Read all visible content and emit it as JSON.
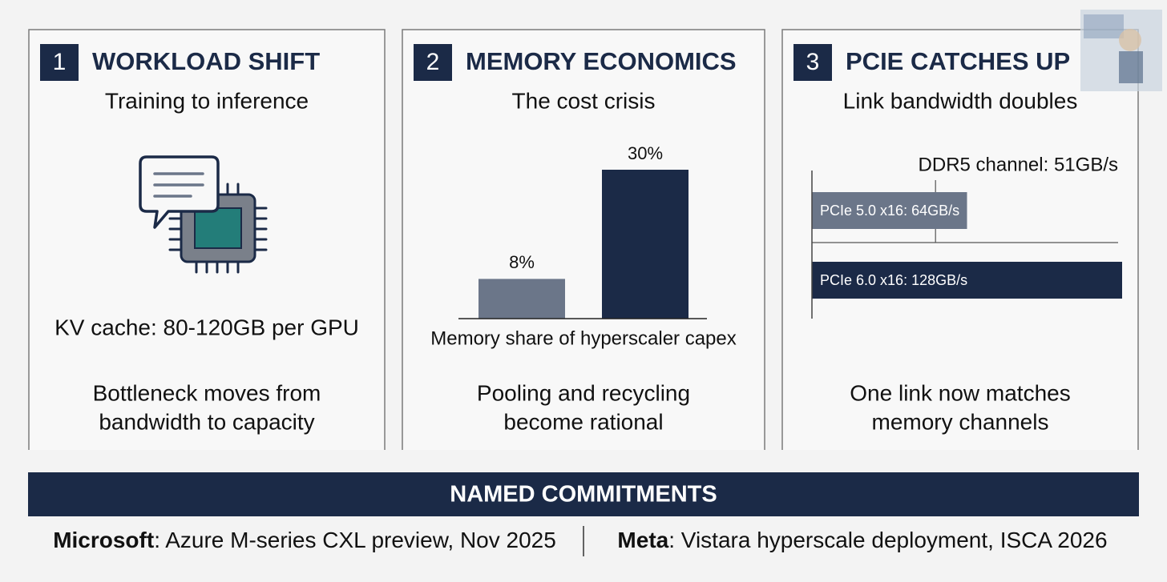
{
  "panels": [
    {
      "number": 1,
      "title": "WORKLOAD SHIFT",
      "subtitle": "Training to inference",
      "fact": "KV cache: 80-120GB per GPU",
      "conclusion": [
        "Bottleneck moves from",
        "bandwidth to capacity"
      ]
    },
    {
      "number": 2,
      "title": "MEMORY ECONOMICS",
      "subtitle": "The cost crisis",
      "chart": {
        "type": "bar",
        "values": [
          8,
          30
        ],
        "value_labels": [
          "8%",
          "30%"
        ],
        "colors": [
          "#6b7689",
          "#1b2a47"
        ],
        "caption": "Memory share of hyperscaler capex"
      },
      "conclusion": [
        "Pooling and recycling",
        "become rational"
      ]
    },
    {
      "number": 3,
      "title": "PCIE CATCHES UP",
      "subtitle": "Link bandwidth doubles",
      "chart": {
        "type": "hbar",
        "values": [
          64,
          128
        ],
        "value_labels": [
          "PCIe 5.0 x16: 64GB/s",
          "PCIe 6.0 x16: 128GB/s"
        ],
        "colors": [
          "#6b7689",
          "#1b2a47"
        ],
        "reference": {
          "value": 51,
          "label": "DDR5 channel: 51GB/s"
        }
      },
      "conclusion": [
        "One link now matches",
        "memory channels"
      ]
    }
  ],
  "footer": {
    "title": "NAMED COMMITMENTS",
    "items": [
      {
        "name": "Microsoft",
        "detail": ": Azure M-series CXL preview, Nov 2025"
      },
      {
        "name": "Meta",
        "detail": ": Vistara hyperscale deployment, ISCA 2026"
      }
    ]
  }
}
